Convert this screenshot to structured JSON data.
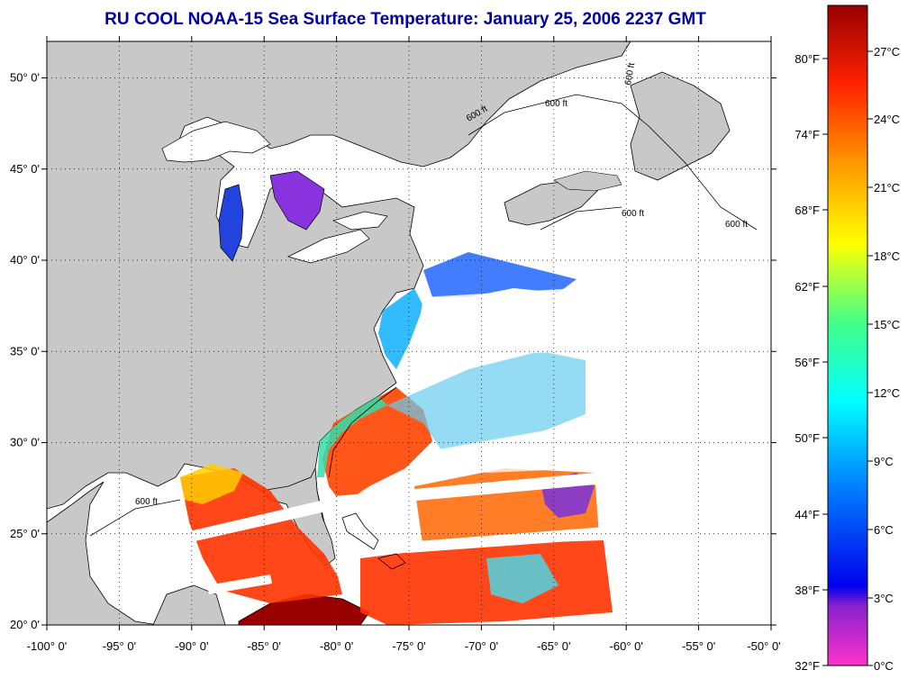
{
  "title": "RU COOL  NOAA-15  Sea Surface Temperature:  January 25, 2006 2237 GMT",
  "map": {
    "lon_range": [
      -100,
      -50
    ],
    "lat_range": [
      20,
      52
    ],
    "lon_ticks": [
      -100,
      -95,
      -90,
      -85,
      -80,
      -75,
      -70,
      -65,
      -60,
      -55,
      -50
    ],
    "lon_labels": [
      "-100° 0'",
      "-95° 0'",
      "-90° 0'",
      "-85° 0'",
      "-80° 0'",
      "-75° 0'",
      "-70° 0'",
      "-65° 0'",
      "-60° 0'",
      "-55° 0'",
      "-50° 0'"
    ],
    "lat_ticks": [
      20,
      25,
      30,
      35,
      40,
      45,
      50
    ],
    "lat_labels": [
      "20° 0'",
      "25° 0'",
      "30° 0'",
      "35° 0'",
      "40° 0'",
      "45° 0'",
      "50° 0'"
    ],
    "grid": true,
    "land_color": "#c8c8c8",
    "contour_labels": [
      "600 ft",
      "600 ft",
      "600 ft",
      "600 ft",
      "600 ft",
      "600 ft"
    ]
  },
  "colorbar": {
    "fahrenheit_labels": [
      "80°F",
      "74°F",
      "68°F",
      "62°F",
      "56°F",
      "50°F",
      "44°F",
      "38°F",
      "32°F"
    ],
    "celsius_labels": [
      "27°C",
      "24°C",
      "21°C",
      "18°C",
      "15°C",
      "12°C",
      "9°C",
      "6°C",
      "3°C",
      "0°C"
    ],
    "colors": [
      "#ff33cc",
      "#8822cc",
      "#0000ee",
      "#0088ff",
      "#00ffff",
      "#44ff88",
      "#ffff00",
      "#ff9900",
      "#ff2200",
      "#990000"
    ]
  }
}
